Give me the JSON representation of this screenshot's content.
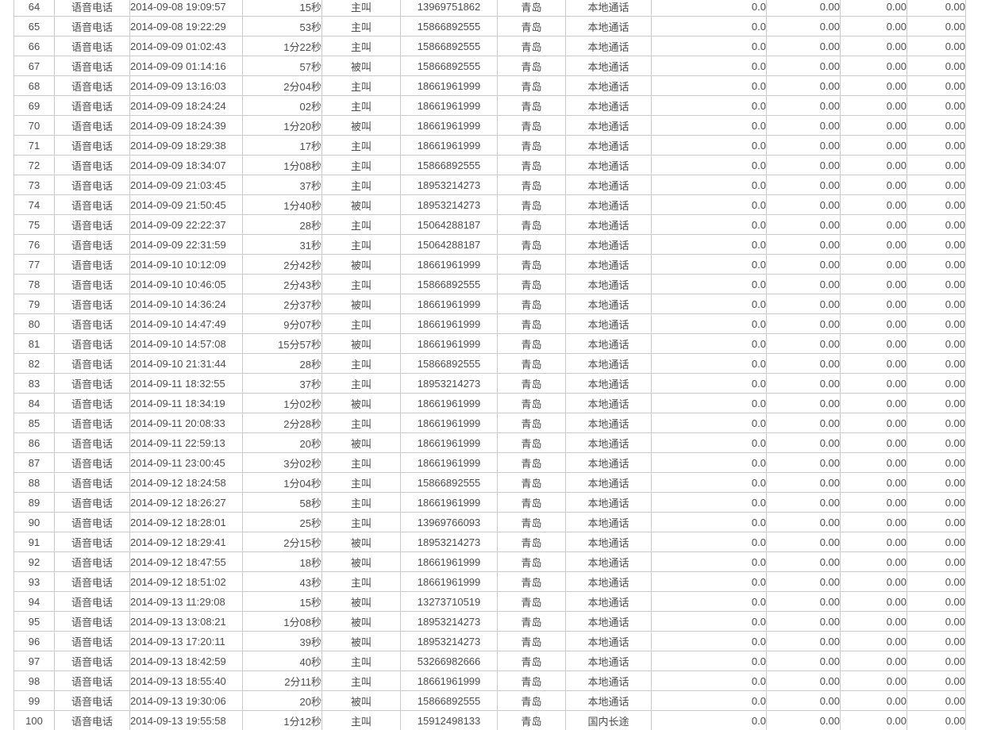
{
  "colors": {
    "background": "#ffffff",
    "border": "#cbcbcb",
    "text": "#4d4d4d"
  },
  "table": {
    "column_keys": [
      "index",
      "service-type",
      "start-time",
      "duration",
      "call-direction",
      "phone-number",
      "location",
      "call-category",
      "fee-1",
      "fee-2",
      "fee-3",
      "fee-4"
    ],
    "rows": [
      [
        "64",
        "语音电话",
        "2014-09-08 19:09:57",
        "15秒",
        "主叫",
        "13969751862",
        "青岛",
        "本地通话",
        "0.0",
        "0.00",
        "0.00",
        "0.00"
      ],
      [
        "65",
        "语音电话",
        "2014-09-08 19:22:29",
        "53秒",
        "主叫",
        "15866892555",
        "青岛",
        "本地通话",
        "0.0",
        "0.00",
        "0.00",
        "0.00"
      ],
      [
        "66",
        "语音电话",
        "2014-09-09 01:02:43",
        "1分22秒",
        "主叫",
        "15866892555",
        "青岛",
        "本地通话",
        "0.0",
        "0.00",
        "0.00",
        "0.00"
      ],
      [
        "67",
        "语音电话",
        "2014-09-09 01:14:16",
        "57秒",
        "被叫",
        "15866892555",
        "青岛",
        "本地通话",
        "0.0",
        "0.00",
        "0.00",
        "0.00"
      ],
      [
        "68",
        "语音电话",
        "2014-09-09 13:16:03",
        "2分04秒",
        "主叫",
        "18661961999",
        "青岛",
        "本地通话",
        "0.0",
        "0.00",
        "0.00",
        "0.00"
      ],
      [
        "69",
        "语音电话",
        "2014-09-09 18:24:24",
        "02秒",
        "主叫",
        "18661961999",
        "青岛",
        "本地通话",
        "0.0",
        "0.00",
        "0.00",
        "0.00"
      ],
      [
        "70",
        "语音电话",
        "2014-09-09 18:24:39",
        "1分20秒",
        "被叫",
        "18661961999",
        "青岛",
        "本地通话",
        "0.0",
        "0.00",
        "0.00",
        "0.00"
      ],
      [
        "71",
        "语音电话",
        "2014-09-09 18:29:38",
        "17秒",
        "主叫",
        "18661961999",
        "青岛",
        "本地通话",
        "0.0",
        "0.00",
        "0.00",
        "0.00"
      ],
      [
        "72",
        "语音电话",
        "2014-09-09 18:34:07",
        "1分08秒",
        "主叫",
        "15866892555",
        "青岛",
        "本地通话",
        "0.0",
        "0.00",
        "0.00",
        "0.00"
      ],
      [
        "73",
        "语音电话",
        "2014-09-09 21:03:45",
        "37秒",
        "主叫",
        "18953214273",
        "青岛",
        "本地通话",
        "0.0",
        "0.00",
        "0.00",
        "0.00"
      ],
      [
        "74",
        "语音电话",
        "2014-09-09 21:50:45",
        "1分40秒",
        "被叫",
        "18953214273",
        "青岛",
        "本地通话",
        "0.0",
        "0.00",
        "0.00",
        "0.00"
      ],
      [
        "75",
        "语音电话",
        "2014-09-09 22:22:37",
        "28秒",
        "主叫",
        "15064288187",
        "青岛",
        "本地通话",
        "0.0",
        "0.00",
        "0.00",
        "0.00"
      ],
      [
        "76",
        "语音电话",
        "2014-09-09 22:31:59",
        "31秒",
        "主叫",
        "15064288187",
        "青岛",
        "本地通话",
        "0.0",
        "0.00",
        "0.00",
        "0.00"
      ],
      [
        "77",
        "语音电话",
        "2014-09-10 10:12:09",
        "2分42秒",
        "被叫",
        "18661961999",
        "青岛",
        "本地通话",
        "0.0",
        "0.00",
        "0.00",
        "0.00"
      ],
      [
        "78",
        "语音电话",
        "2014-09-10 10:46:05",
        "2分43秒",
        "主叫",
        "15866892555",
        "青岛",
        "本地通话",
        "0.0",
        "0.00",
        "0.00",
        "0.00"
      ],
      [
        "79",
        "语音电话",
        "2014-09-10 14:36:24",
        "2分37秒",
        "被叫",
        "18661961999",
        "青岛",
        "本地通话",
        "0.0",
        "0.00",
        "0.00",
        "0.00"
      ],
      [
        "80",
        "语音电话",
        "2014-09-10 14:47:49",
        "9分07秒",
        "主叫",
        "18661961999",
        "青岛",
        "本地通话",
        "0.0",
        "0.00",
        "0.00",
        "0.00"
      ],
      [
        "81",
        "语音电话",
        "2014-09-10 14:57:08",
        "15分57秒",
        "被叫",
        "18661961999",
        "青岛",
        "本地通话",
        "0.0",
        "0.00",
        "0.00",
        "0.00"
      ],
      [
        "82",
        "语音电话",
        "2014-09-10 21:31:44",
        "28秒",
        "主叫",
        "15866892555",
        "青岛",
        "本地通话",
        "0.0",
        "0.00",
        "0.00",
        "0.00"
      ],
      [
        "83",
        "语音电话",
        "2014-09-11 18:32:55",
        "37秒",
        "主叫",
        "18953214273",
        "青岛",
        "本地通话",
        "0.0",
        "0.00",
        "0.00",
        "0.00"
      ],
      [
        "84",
        "语音电话",
        "2014-09-11 18:34:19",
        "1分02秒",
        "被叫",
        "18661961999",
        "青岛",
        "本地通话",
        "0.0",
        "0.00",
        "0.00",
        "0.00"
      ],
      [
        "85",
        "语音电话",
        "2014-09-11 20:08:33",
        "2分28秒",
        "主叫",
        "18661961999",
        "青岛",
        "本地通话",
        "0.0",
        "0.00",
        "0.00",
        "0.00"
      ],
      [
        "86",
        "语音电话",
        "2014-09-11 22:59:13",
        "20秒",
        "被叫",
        "18661961999",
        "青岛",
        "本地通话",
        "0.0",
        "0.00",
        "0.00",
        "0.00"
      ],
      [
        "87",
        "语音电话",
        "2014-09-11 23:00:45",
        "3分02秒",
        "主叫",
        "18661961999",
        "青岛",
        "本地通话",
        "0.0",
        "0.00",
        "0.00",
        "0.00"
      ],
      [
        "88",
        "语音电话",
        "2014-09-12 18:24:58",
        "1分04秒",
        "主叫",
        "15866892555",
        "青岛",
        "本地通话",
        "0.0",
        "0.00",
        "0.00",
        "0.00"
      ],
      [
        "89",
        "语音电话",
        "2014-09-12 18:26:27",
        "58秒",
        "主叫",
        "18661961999",
        "青岛",
        "本地通话",
        "0.0",
        "0.00",
        "0.00",
        "0.00"
      ],
      [
        "90",
        "语音电话",
        "2014-09-12 18:28:01",
        "25秒",
        "主叫",
        "13969766093",
        "青岛",
        "本地通话",
        "0.0",
        "0.00",
        "0.00",
        "0.00"
      ],
      [
        "91",
        "语音电话",
        "2014-09-12 18:29:41",
        "2分15秒",
        "被叫",
        "18953214273",
        "青岛",
        "本地通话",
        "0.0",
        "0.00",
        "0.00",
        "0.00"
      ],
      [
        "92",
        "语音电话",
        "2014-09-12 18:47:55",
        "18秒",
        "被叫",
        "18661961999",
        "青岛",
        "本地通话",
        "0.0",
        "0.00",
        "0.00",
        "0.00"
      ],
      [
        "93",
        "语音电话",
        "2014-09-12 18:51:02",
        "43秒",
        "主叫",
        "18661961999",
        "青岛",
        "本地通话",
        "0.0",
        "0.00",
        "0.00",
        "0.00"
      ],
      [
        "94",
        "语音电话",
        "2014-09-13 11:29:08",
        "15秒",
        "被叫",
        "13273710519",
        "青岛",
        "本地通话",
        "0.0",
        "0.00",
        "0.00",
        "0.00"
      ],
      [
        "95",
        "语音电话",
        "2014-09-13 13:08:21",
        "1分08秒",
        "被叫",
        "18953214273",
        "青岛",
        "本地通话",
        "0.0",
        "0.00",
        "0.00",
        "0.00"
      ],
      [
        "96",
        "语音电话",
        "2014-09-13 17:20:11",
        "39秒",
        "被叫",
        "18953214273",
        "青岛",
        "本地通话",
        "0.0",
        "0.00",
        "0.00",
        "0.00"
      ],
      [
        "97",
        "语音电话",
        "2014-09-13 18:42:59",
        "40秒",
        "主叫",
        "53266982666",
        "青岛",
        "本地通话",
        "0.0",
        "0.00",
        "0.00",
        "0.00"
      ],
      [
        "98",
        "语音电话",
        "2014-09-13 18:55:40",
        "2分11秒",
        "主叫",
        "18661961999",
        "青岛",
        "本地通话",
        "0.0",
        "0.00",
        "0.00",
        "0.00"
      ],
      [
        "99",
        "语音电话",
        "2014-09-13 19:30:06",
        "20秒",
        "被叫",
        "15866892555",
        "青岛",
        "本地通话",
        "0.0",
        "0.00",
        "0.00",
        "0.00"
      ],
      [
        "100",
        "语音电话",
        "2014-09-13 19:55:58",
        "1分12秒",
        "主叫",
        "15912498133",
        "青岛",
        "国内长途",
        "0.0",
        "0.00",
        "0.00",
        "0.00"
      ]
    ]
  }
}
